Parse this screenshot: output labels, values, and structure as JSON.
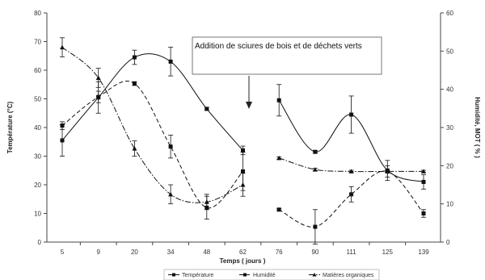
{
  "chart_data": {
    "type": "line",
    "categories": [
      "5",
      "9",
      "20",
      "34",
      "48",
      "62",
      "76",
      "90",
      "111",
      "125",
      "139"
    ],
    "xlabel": "Temps  ( jours )",
    "ylabel_left": "Température  (°C)",
    "ylabel_right": "Humidité, MOT ( % )",
    "ylim_left": [
      0,
      80
    ],
    "ylim_right": [
      0,
      60
    ],
    "yticks_left": [
      "0",
      "10",
      "20",
      "30",
      "40",
      "50",
      "60",
      "70",
      "80"
    ],
    "yticks_right": [
      "0",
      "10",
      "20",
      "30",
      "40",
      "50",
      "60"
    ],
    "grid": false,
    "legend_position": "bottom",
    "annotation": "Addition de sciures de bois et de déchets verts",
    "series": [
      {
        "name": "Température",
        "axis": "left",
        "style": "solid",
        "marker": "square",
        "values": [
          35.5,
          50.5,
          64.5,
          63,
          46.5,
          32,
          49.5,
          31.5,
          44.5,
          25,
          21
        ],
        "errors": [
          5.5,
          5.5,
          2.5,
          5,
          0.5,
          1.5,
          5.5,
          0.5,
          6.5,
          3.5,
          2.5
        ]
      },
      {
        "name": "Humidité",
        "axis": "right",
        "style": "dashed",
        "marker": "square",
        "values": [
          30.5,
          38,
          41.5,
          25,
          9,
          18.5,
          8.5,
          4,
          12.5,
          18.5,
          7.5
        ],
        "errors": [
          1,
          1.5,
          0.5,
          3,
          3,
          5,
          0.3,
          4.5,
          2,
          1.5,
          1
        ]
      },
      {
        "name": "Matières organiques",
        "axis": "right",
        "style": "dashdot",
        "marker": "triangle",
        "values": [
          51,
          43,
          24.5,
          12.5,
          10.5,
          15,
          22,
          19,
          18.5,
          18.5,
          18.5
        ],
        "errors": [
          2.5,
          2.5,
          2,
          2.5,
          2,
          3,
          0.3,
          0.3,
          0.3,
          0.3,
          0.3
        ]
      }
    ]
  }
}
